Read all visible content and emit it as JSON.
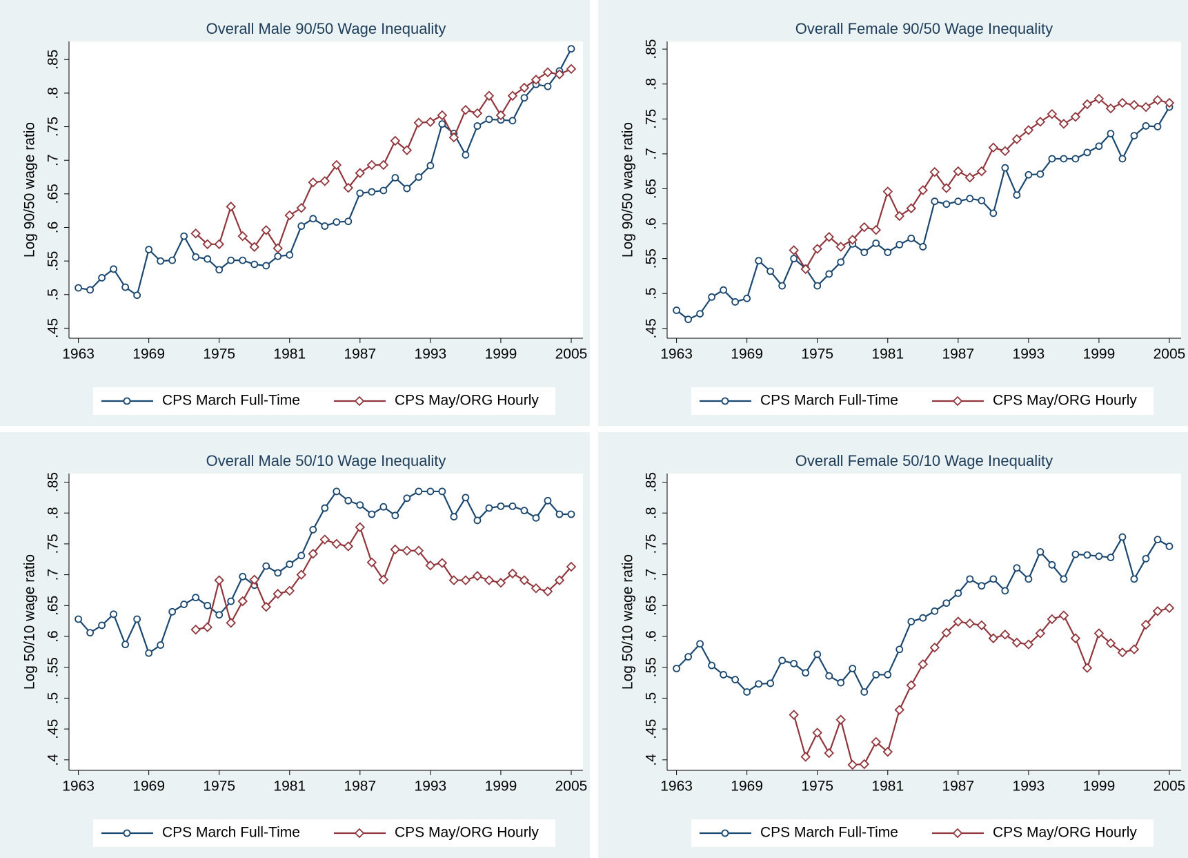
{
  "chart_data": [
    {
      "type": "line",
      "title": "Overall Male 90/50  Wage Inequality",
      "y_label": "Log 90/50 wage ratio",
      "x": [
        1963,
        1964,
        1965,
        1966,
        1967,
        1968,
        1969,
        1970,
        1971,
        1972,
        1973,
        1974,
        1975,
        1976,
        1977,
        1978,
        1979,
        1980,
        1981,
        1982,
        1983,
        1984,
        1985,
        1986,
        1987,
        1988,
        1989,
        1990,
        1991,
        1992,
        1993,
        1994,
        1995,
        1996,
        1997,
        1998,
        1999,
        2000,
        2001,
        2002,
        2003,
        2004,
        2005
      ],
      "series": [
        {
          "name": "CPS March Full-Time",
          "color": "#1a476f",
          "marker": "circle",
          "values": [
            0.51,
            0.507,
            0.525,
            0.538,
            0.511,
            0.499,
            0.567,
            0.55,
            0.551,
            0.587,
            0.556,
            0.553,
            0.537,
            0.551,
            0.551,
            0.545,
            0.543,
            0.557,
            0.559,
            0.602,
            0.613,
            0.602,
            0.608,
            0.609,
            0.651,
            0.653,
            0.655,
            0.674,
            0.658,
            0.675,
            0.692,
            0.754,
            0.74,
            0.708,
            0.751,
            0.761,
            0.76,
            0.759,
            0.793,
            0.813,
            0.81,
            0.833,
            0.866
          ]
        },
        {
          "name": "CPS May/ORG Hourly",
          "color": "#90353b",
          "marker": "diamond",
          "values": [
            null,
            null,
            null,
            null,
            null,
            null,
            null,
            null,
            null,
            null,
            0.591,
            0.575,
            0.575,
            0.631,
            0.587,
            0.571,
            0.596,
            0.569,
            0.618,
            0.629,
            0.667,
            0.669,
            0.693,
            0.659,
            0.681,
            0.693,
            0.693,
            0.729,
            0.715,
            0.756,
            0.757,
            0.767,
            0.734,
            0.775,
            0.77,
            0.796,
            0.767,
            0.796,
            0.808,
            0.82,
            0.831,
            0.828,
            0.836
          ]
        }
      ],
      "xlim": [
        1962.2,
        2006
      ],
      "xticks": [
        1963,
        1969,
        1975,
        1981,
        1987,
        1993,
        1999,
        2005
      ],
      "ylim": [
        0.435,
        0.877
      ],
      "yticks": [
        {
          "value": 0.45,
          "label": ".45"
        },
        {
          "value": 0.5,
          "label": ".5"
        },
        {
          "value": 0.55,
          "label": ".55"
        },
        {
          "value": 0.6,
          "label": ".6"
        },
        {
          "value": 0.65,
          "label": ".65"
        },
        {
          "value": 0.7,
          "label": ".7"
        },
        {
          "value": 0.75,
          "label": ".75"
        },
        {
          "value": 0.8,
          "label": ".8"
        },
        {
          "value": 0.85,
          "label": ".85"
        }
      ]
    },
    {
      "type": "line",
      "title": "Overall Female 90/50  Wage Inequality",
      "y_label": "Log 90/50 wage ratio",
      "x": [
        1963,
        1964,
        1965,
        1966,
        1967,
        1968,
        1969,
        1970,
        1971,
        1972,
        1973,
        1974,
        1975,
        1976,
        1977,
        1978,
        1979,
        1980,
        1981,
        1982,
        1983,
        1984,
        1985,
        1986,
        1987,
        1988,
        1989,
        1990,
        1991,
        1992,
        1993,
        1994,
        1995,
        1996,
        1997,
        1998,
        1999,
        2000,
        2001,
        2002,
        2003,
        2004,
        2005
      ],
      "series": [
        {
          "name": "CPS March Full-Time",
          "color": "#1a476f",
          "marker": "circle",
          "values": [
            0.476,
            0.463,
            0.471,
            0.495,
            0.505,
            0.488,
            0.493,
            0.547,
            0.532,
            0.511,
            0.55,
            0.536,
            0.511,
            0.528,
            0.545,
            0.571,
            0.559,
            0.572,
            0.559,
            0.57,
            0.579,
            0.567,
            0.632,
            0.628,
            0.632,
            0.636,
            0.633,
            0.615,
            0.68,
            0.641,
            0.67,
            0.671,
            0.693,
            0.693,
            0.693,
            0.702,
            0.711,
            0.729,
            0.693,
            0.726,
            0.74,
            0.739,
            0.767
          ]
        },
        {
          "name": "CPS May/ORG Hourly",
          "color": "#90353b",
          "marker": "diamond",
          "values": [
            null,
            null,
            null,
            null,
            null,
            null,
            null,
            null,
            null,
            null,
            0.562,
            0.535,
            0.564,
            0.581,
            0.567,
            0.577,
            0.595,
            0.591,
            0.646,
            0.611,
            0.622,
            0.648,
            0.674,
            0.651,
            0.675,
            0.666,
            0.675,
            0.709,
            0.704,
            0.721,
            0.734,
            0.746,
            0.757,
            0.743,
            0.753,
            0.771,
            0.779,
            0.765,
            0.773,
            0.77,
            0.767,
            0.777,
            0.773
          ]
        }
      ],
      "xlim": [
        1962.2,
        2006
      ],
      "xticks": [
        1963,
        1969,
        1975,
        1981,
        1987,
        1993,
        1999,
        2005
      ],
      "ylim": [
        0.436,
        0.861
      ],
      "yticks": [
        {
          "value": 0.45,
          "label": ".45"
        },
        {
          "value": 0.5,
          "label": ".5"
        },
        {
          "value": 0.55,
          "label": ".55"
        },
        {
          "value": 0.6,
          "label": ".6"
        },
        {
          "value": 0.65,
          "label": ".65"
        },
        {
          "value": 0.7,
          "label": ".7"
        },
        {
          "value": 0.75,
          "label": ".75"
        },
        {
          "value": 0.8,
          "label": ".8"
        },
        {
          "value": 0.85,
          "label": ".85"
        }
      ]
    },
    {
      "type": "line",
      "title": "Overall Male 50/10  Wage Inequality",
      "y_label": "Log 50/10 wage ratio",
      "x": [
        1963,
        1964,
        1965,
        1966,
        1967,
        1968,
        1969,
        1970,
        1971,
        1972,
        1973,
        1974,
        1975,
        1976,
        1977,
        1978,
        1979,
        1980,
        1981,
        1982,
        1983,
        1984,
        1985,
        1986,
        1987,
        1988,
        1989,
        1990,
        1991,
        1992,
        1993,
        1994,
        1995,
        1996,
        1997,
        1998,
        1999,
        2000,
        2001,
        2002,
        2003,
        2004,
        2005
      ],
      "series": [
        {
          "name": "CPS March Full-Time",
          "color": "#1a476f",
          "marker": "circle",
          "values": [
            0.628,
            0.606,
            0.618,
            0.636,
            0.587,
            0.628,
            0.573,
            0.586,
            0.64,
            0.652,
            0.663,
            0.65,
            0.635,
            0.657,
            0.697,
            0.683,
            0.714,
            0.703,
            0.717,
            0.731,
            0.773,
            0.808,
            0.835,
            0.82,
            0.813,
            0.798,
            0.81,
            0.796,
            0.824,
            0.835,
            0.835,
            0.835,
            0.794,
            0.825,
            0.788,
            0.808,
            0.811,
            0.811,
            0.804,
            0.792,
            0.82,
            0.798,
            0.798
          ]
        },
        {
          "name": "CPS May/ORG Hourly",
          "color": "#90353b",
          "marker": "diamond",
          "values": [
            null,
            null,
            null,
            null,
            null,
            null,
            null,
            null,
            null,
            null,
            0.611,
            0.615,
            0.691,
            0.622,
            0.657,
            0.692,
            0.648,
            0.669,
            0.674,
            0.7,
            0.734,
            0.757,
            0.75,
            0.746,
            0.777,
            0.72,
            0.692,
            0.741,
            0.739,
            0.739,
            0.715,
            0.719,
            0.691,
            0.691,
            0.698,
            0.691,
            0.687,
            0.702,
            0.691,
            0.678,
            0.673,
            0.691,
            0.713
          ]
        }
      ],
      "xlim": [
        1962.2,
        2006
      ],
      "xticks": [
        1963,
        1969,
        1975,
        1981,
        1987,
        1993,
        1999,
        2005
      ],
      "ylim": [
        0.383,
        0.864
      ],
      "yticks": [
        {
          "value": 0.4,
          "label": ".4"
        },
        {
          "value": 0.45,
          "label": ".45"
        },
        {
          "value": 0.5,
          "label": ".5"
        },
        {
          "value": 0.55,
          "label": ".55"
        },
        {
          "value": 0.6,
          "label": ".6"
        },
        {
          "value": 0.65,
          "label": ".65"
        },
        {
          "value": 0.7,
          "label": ".7"
        },
        {
          "value": 0.75,
          "label": ".75"
        },
        {
          "value": 0.8,
          "label": ".8"
        },
        {
          "value": 0.85,
          "label": ".85"
        }
      ]
    },
    {
      "type": "line",
      "title": "Overall Female 50/10  Wage Inequality",
      "y_label": "Log 50/10 wage ratio",
      "x": [
        1963,
        1964,
        1965,
        1966,
        1967,
        1968,
        1969,
        1970,
        1971,
        1972,
        1973,
        1974,
        1975,
        1976,
        1977,
        1978,
        1979,
        1980,
        1981,
        1982,
        1983,
        1984,
        1985,
        1986,
        1987,
        1988,
        1989,
        1990,
        1991,
        1992,
        1993,
        1994,
        1995,
        1996,
        1997,
        1998,
        1999,
        2000,
        2001,
        2002,
        2003,
        2004,
        2005
      ],
      "series": [
        {
          "name": "CPS March Full-Time",
          "color": "#1a476f",
          "marker": "circle",
          "values": [
            0.548,
            0.567,
            0.588,
            0.553,
            0.538,
            0.53,
            0.51,
            0.523,
            0.524,
            0.561,
            0.556,
            0.541,
            0.571,
            0.536,
            0.525,
            0.548,
            0.51,
            0.538,
            0.538,
            0.579,
            0.624,
            0.63,
            0.641,
            0.654,
            0.67,
            0.693,
            0.682,
            0.693,
            0.674,
            0.711,
            0.693,
            0.737,
            0.716,
            0.693,
            0.733,
            0.732,
            0.73,
            0.728,
            0.761,
            0.693,
            0.726,
            0.757,
            0.746
          ]
        },
        {
          "name": "CPS May/ORG Hourly",
          "color": "#90353b",
          "marker": "diamond",
          "values": [
            null,
            null,
            null,
            null,
            null,
            null,
            null,
            null,
            null,
            null,
            0.473,
            0.405,
            0.444,
            0.411,
            0.465,
            0.392,
            0.393,
            0.429,
            0.413,
            0.481,
            0.521,
            0.555,
            0.582,
            0.606,
            0.624,
            0.621,
            0.618,
            0.597,
            0.603,
            0.59,
            0.587,
            0.605,
            0.628,
            0.634,
            0.597,
            0.549,
            0.605,
            0.589,
            0.574,
            0.579,
            0.619,
            0.641,
            0.646
          ]
        }
      ],
      "xlim": [
        1962.2,
        2006
      ],
      "xticks": [
        1963,
        1969,
        1975,
        1981,
        1987,
        1993,
        1999,
        2005
      ],
      "ylim": [
        0.383,
        0.864
      ],
      "yticks": [
        {
          "value": 0.4,
          "label": ".4"
        },
        {
          "value": 0.45,
          "label": ".45"
        },
        {
          "value": 0.5,
          "label": ".5"
        },
        {
          "value": 0.55,
          "label": ".55"
        },
        {
          "value": 0.6,
          "label": ".6"
        },
        {
          "value": 0.65,
          "label": ".65"
        },
        {
          "value": 0.7,
          "label": ".7"
        },
        {
          "value": 0.75,
          "label": ".75"
        },
        {
          "value": 0.8,
          "label": ".8"
        },
        {
          "value": 0.85,
          "label": ".85"
        }
      ]
    }
  ]
}
